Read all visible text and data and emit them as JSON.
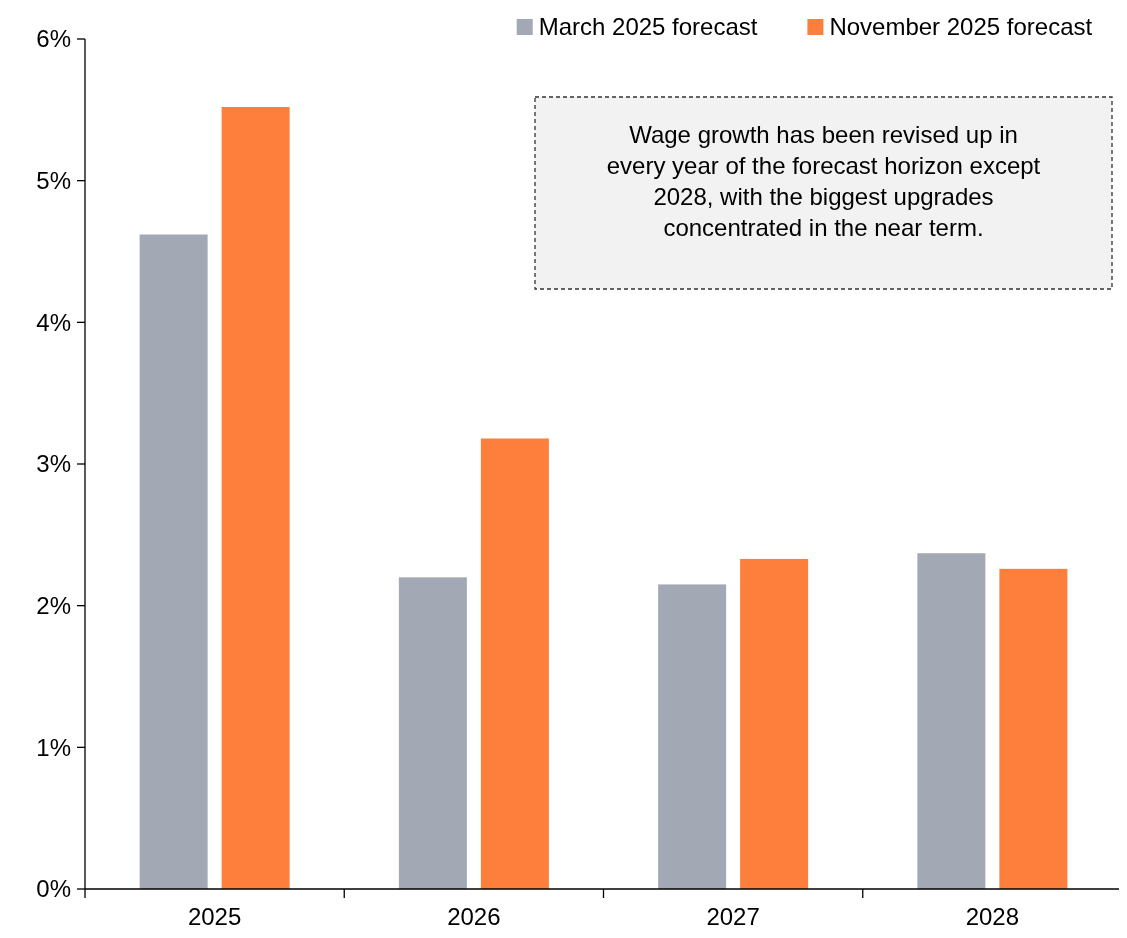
{
  "chart_data": {
    "type": "bar",
    "categories": [
      "2025",
      "2026",
      "2027",
      "2028"
    ],
    "series": [
      {
        "name": "March 2025 forecast",
        "color": "#a2a9b4",
        "values": [
          4.62,
          2.2,
          2.15,
          2.37
        ]
      },
      {
        "name": "November 2025 forecast",
        "color": "#fd7f3b",
        "values": [
          5.52,
          3.18,
          2.33,
          2.26
        ]
      }
    ],
    "ylim": [
      0,
      6
    ],
    "yticks": [
      {
        "value": 0,
        "label": "0%"
      },
      {
        "value": 1,
        "label": "1%"
      },
      {
        "value": 2,
        "label": "2%"
      },
      {
        "value": 3,
        "label": "3%"
      },
      {
        "value": 4,
        "label": "4%"
      },
      {
        "value": 5,
        "label": "5%"
      },
      {
        "value": 6,
        "label": "6%"
      }
    ],
    "legend": "top right",
    "grid": false,
    "annotations": [
      "Wage growth has been revised up in\nevery year of the forecast horizon except\n2028, with the biggest upgrades\nconcentrated in the near term."
    ]
  }
}
